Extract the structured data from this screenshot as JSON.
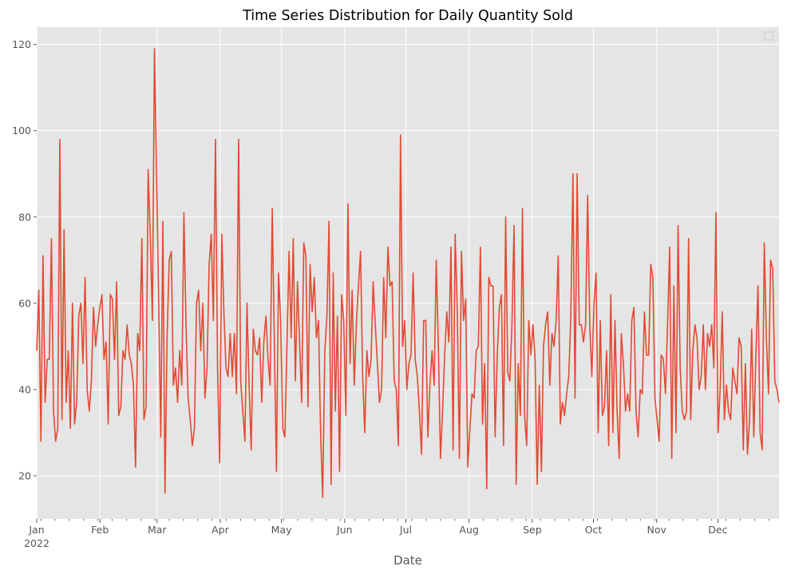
{
  "chart_data": {
    "type": "line",
    "title": "Time Series Distribution for Daily Quantity Sold",
    "xlabel": "Date",
    "ylabel": "",
    "x_start": "2022-01-01",
    "x_end": "2022-12-31",
    "ylim": [
      10,
      124
    ],
    "yticks": [
      20,
      40,
      60,
      80,
      100,
      120
    ],
    "xticks": [
      {
        "date": "2022-01-01",
        "label": "Jan",
        "year_label": "2022"
      },
      {
        "date": "2022-02-01",
        "label": "Feb"
      },
      {
        "date": "2022-03-01",
        "label": "Mar"
      },
      {
        "date": "2022-04-01",
        "label": "Apr"
      },
      {
        "date": "2022-05-01",
        "label": "May"
      },
      {
        "date": "2022-06-01",
        "label": "Jun"
      },
      {
        "date": "2022-07-01",
        "label": "Jul"
      },
      {
        "date": "2022-08-01",
        "label": "Aug"
      },
      {
        "date": "2022-09-01",
        "label": "Sep"
      },
      {
        "date": "2022-10-01",
        "label": "Oct"
      },
      {
        "date": "2022-11-01",
        "label": "Nov"
      },
      {
        "date": "2022-12-01",
        "label": "Dec"
      }
    ],
    "grid": true,
    "legend": "top-right (empty)",
    "series": [
      {
        "color": "#e24a33",
        "values": [
          49,
          63,
          28,
          71,
          37,
          47,
          47,
          75,
          35,
          28,
          31,
          98,
          33,
          77,
          37,
          49,
          31,
          60,
          32,
          37,
          57,
          60,
          46,
          66,
          40,
          35,
          42,
          59,
          50,
          55,
          59,
          62,
          47,
          51,
          32,
          62,
          61,
          47,
          65,
          34,
          36,
          49,
          47,
          55,
          48,
          46,
          41,
          22,
          53,
          49,
          75,
          33,
          36,
          91,
          76,
          56,
          119,
          90,
          60,
          29,
          79,
          16,
          52,
          70,
          72,
          41,
          45,
          37,
          49,
          41,
          81,
          55,
          38,
          33,
          27,
          31,
          60,
          63,
          49,
          60,
          38,
          45,
          69,
          76,
          56,
          98,
          45,
          23,
          76,
          58,
          45,
          43,
          53,
          43,
          53,
          39,
          98,
          42,
          35,
          28,
          60,
          41,
          26,
          54,
          49,
          48,
          52,
          37,
          51,
          57,
          47,
          41,
          82,
          51,
          21,
          67,
          56,
          31,
          29,
          50,
          72,
          52,
          75,
          42,
          65,
          51,
          37,
          74,
          71,
          36,
          69,
          58,
          66,
          52,
          56,
          30,
          15,
          49,
          57,
          79,
          18,
          67,
          35,
          57,
          21,
          62,
          56,
          34,
          83,
          46,
          63,
          41,
          55,
          64,
          72,
          43,
          30,
          49,
          43,
          47,
          65,
          55,
          46,
          37,
          40,
          66,
          52,
          73,
          64,
          65,
          42,
          40,
          27,
          99,
          50,
          56,
          40,
          46,
          48,
          67,
          47,
          43,
          35,
          25,
          56,
          56,
          29,
          41,
          49,
          41,
          70,
          50,
          24,
          35,
          48,
          58,
          51,
          73,
          26,
          76,
          58,
          24,
          72,
          56,
          61,
          22,
          31,
          39,
          38,
          49,
          50,
          73,
          32,
          46,
          17,
          66,
          64,
          64,
          29,
          48,
          59,
          62,
          27,
          80,
          44,
          42,
          55,
          78,
          18,
          46,
          34,
          82,
          34,
          27,
          56,
          48,
          55,
          47,
          18,
          41,
          21,
          50,
          55,
          58,
          41,
          53,
          50,
          56,
          71,
          32,
          37,
          34,
          39,
          43,
          57,
          90,
          38,
          90,
          55,
          55,
          51,
          55,
          85,
          55,
          43,
          60,
          67,
          30,
          56,
          34,
          36,
          49,
          27,
          62,
          30,
          56,
          35,
          24,
          53,
          46,
          35,
          39,
          35,
          56,
          59,
          35,
          29,
          40,
          39,
          58,
          48,
          48,
          69,
          66,
          38,
          33,
          28,
          48,
          47,
          39,
          55,
          73,
          24,
          64,
          30,
          78,
          45,
          35,
          33,
          35,
          75,
          33,
          49,
          55,
          52,
          40,
          43,
          55,
          40,
          53,
          50,
          55,
          45,
          81,
          30,
          40,
          58,
          33,
          41,
          35,
          33,
          45,
          42,
          39,
          52,
          50,
          26,
          46,
          25,
          33,
          54,
          29,
          48,
          64,
          30,
          26,
          74,
          52,
          39,
          70,
          68,
          42,
          40,
          37
        ]
      }
    ]
  }
}
